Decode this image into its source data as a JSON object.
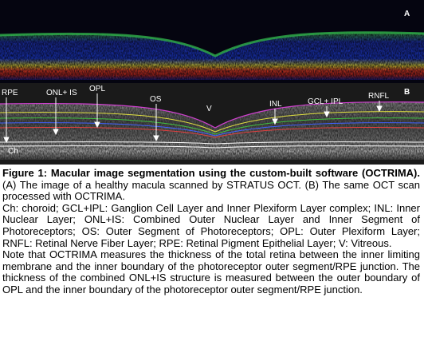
{
  "figure": {
    "panel_a": {
      "label": "A"
    },
    "panel_b": {
      "label": "B",
      "annotations": [
        "RPE",
        "ONL+ IS",
        "OPL",
        "OS",
        "V",
        "INL",
        "GCL+ IPL",
        "RNFL",
        "Ch"
      ]
    },
    "caption": {
      "title": "Figure 1: Macular image segmentation using the custom-built software (OCTRIMA).",
      "description": "(A) The image of a healthy macula scanned by STRATUS OCT. (B) The same OCT scan processed with OCTRIMA.",
      "abbreviations": "Ch: choroid; GCL+IPL: Ganglion Cell Layer and Inner Plexiform Layer complex; INL: Inner Nuclear Layer; ONL+IS: Combined Outer Nuclear Layer and Inner Segment of Photoreceptors; OS: Outer Segment of Photoreceptors; OPL: Outer Plexiform Layer; RNFL: Retinal Nerve Fiber Layer; RPE: Retinal Pigment Epithelial Layer; V: Vitreous.",
      "note": "Note that OCTRIMA measures the thickness of the total retina between the inner limiting membrane and the inner boundary of the photoreceptor outer segment/RPE junction. The thickness of the combined ONL+IS structure is measured between the outer boundary of OPL and the inner boundary of the photoreceptor outer segment/RPE junction."
    }
  }
}
